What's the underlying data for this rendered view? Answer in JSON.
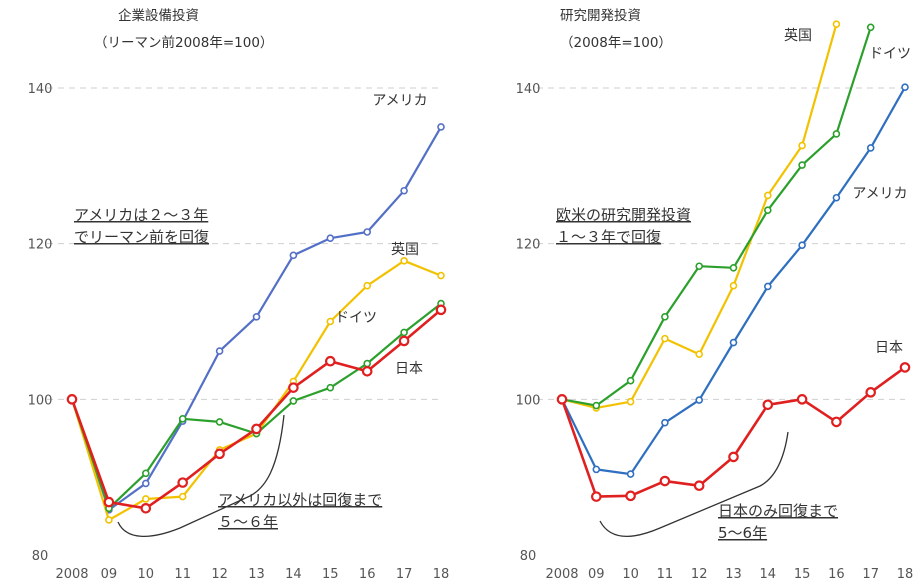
{
  "chart_data": [
    {
      "type": "line",
      "title_lines": [
        "企業設備投資",
        "（リーマン前2008年=100）"
      ],
      "categories": [
        "2008",
        "09",
        "10",
        "11",
        "12",
        "13",
        "14",
        "15",
        "16",
        "17",
        "18"
      ],
      "ylim": [
        80,
        140
      ],
      "yticks": [
        "80",
        "100",
        "120",
        "140"
      ],
      "grid": true,
      "series": [
        {
          "name": "アメリカ",
          "color": "#5470c6",
          "values": [
            100,
            85.8,
            89.2,
            97.2,
            106.2,
            110.6,
            118.5,
            120.7,
            121.5,
            126.8,
            135
          ]
        },
        {
          "name": "英国",
          "color": "#f2c200",
          "values": [
            100,
            84.5,
            87.2,
            87.5,
            93.5,
            95.6,
            102.3,
            110,
            114.6,
            117.8,
            115.9
          ]
        },
        {
          "name": "ドイツ",
          "color": "#2ca02c",
          "values": [
            100,
            86,
            90.5,
            97.5,
            97.1,
            95.6,
            99.8,
            101.5,
            104.6,
            108.6,
            112.3
          ]
        },
        {
          "name": "日本",
          "color": "#e02020",
          "values": [
            100,
            86.8,
            86,
            89.3,
            93,
            96.2,
            101.5,
            104.9,
            103.6,
            107.5,
            111.5
          ]
        }
      ],
      "annotations": [
        {
          "lines": [
            "アメリカは２～３年",
            "でリーマン前を回復"
          ]
        },
        {
          "lines": [
            "アメリカ以外は回復まで",
            "５～６年"
          ]
        }
      ]
    },
    {
      "type": "line",
      "title_lines": [
        "研究開発投資",
        "（2008年=100）"
      ],
      "categories": [
        "2008",
        "09",
        "10",
        "11",
        "12",
        "13",
        "14",
        "15",
        "16",
        "17",
        "18"
      ],
      "ylim": [
        80,
        140
      ],
      "yticks": [
        "80",
        "100",
        "120",
        "140"
      ],
      "grid": true,
      "series": [
        {
          "name": "英国",
          "color": "#f2c200",
          "values": [
            100,
            98.9,
            99.7,
            107.8,
            105.8,
            114.6,
            126.2,
            132.6,
            148.2,
            null,
            null
          ]
        },
        {
          "name": "ドイツ",
          "color": "#2ca02c",
          "values": [
            100,
            99.2,
            102.4,
            110.6,
            117.1,
            116.9,
            124.3,
            130.1,
            134.1,
            147.8,
            null
          ]
        },
        {
          "name": "アメリカ",
          "color": "#2f6fc0",
          "values": [
            100,
            91,
            90.4,
            97,
            99.9,
            107.3,
            114.5,
            119.8,
            125.9,
            132.3,
            140.1
          ]
        },
        {
          "name": "日本",
          "color": "#e02020",
          "values": [
            100,
            87.5,
            87.6,
            89.5,
            88.9,
            92.6,
            99.3,
            100,
            97.1,
            100.9,
            104.1
          ]
        }
      ],
      "annotations": [
        {
          "lines": [
            "欧米の研究開発投資",
            "１～３年で回復"
          ]
        },
        {
          "lines": [
            "日本のみ回復まで",
            "5～6年"
          ]
        }
      ]
    }
  ]
}
